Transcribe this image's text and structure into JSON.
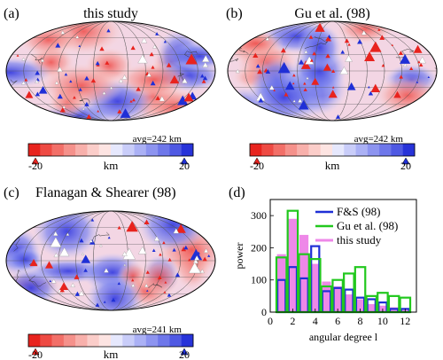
{
  "panels": [
    {
      "letter": "(a)",
      "title": "this study",
      "avg": "avg=242 km"
    },
    {
      "letter": "(b)",
      "title": "Gu et al. (98)",
      "avg": "avg=242 km"
    },
    {
      "letter": "(c)",
      "title": "Flanagan & Shearer (98)",
      "avg": "avg=241 km"
    }
  ],
  "colorbar": {
    "min_label": "-20",
    "unit": "km",
    "max_label": "20"
  },
  "colors": {
    "red": "#e8231e",
    "blue": "#1f2fd6",
    "green": "#22c81e",
    "magenta": "#ee88e8"
  },
  "chart_data": {
    "type": "bar",
    "panel_letter": "(d)",
    "xlabel": "angular degree l",
    "ylabel": "power",
    "xlim": [
      0,
      13
    ],
    "ylim": [
      0,
      350
    ],
    "x_ticks": [
      0,
      2,
      4,
      6,
      8,
      10,
      12
    ],
    "y_ticks": [
      0,
      100,
      200,
      300
    ],
    "x": [
      1,
      2,
      3,
      4,
      5,
      6,
      7,
      8,
      9,
      10,
      11,
      12
    ],
    "legend_position": "top-right",
    "series": [
      {
        "name": "F&S (98)",
        "style": "outline",
        "color": "#1f2fd6",
        "values": [
          100,
          140,
          105,
          205,
          65,
          75,
          70,
          45,
          40,
          30,
          10,
          10
        ]
      },
      {
        "name": "Gu et al. (98)",
        "style": "outline",
        "color": "#22c81e",
        "values": [
          170,
          315,
          180,
          165,
          80,
          100,
          120,
          140,
          50,
          60,
          50,
          45
        ]
      },
      {
        "name": "this study",
        "style": "filled",
        "color": "#ee88e8",
        "values": [
          180,
          290,
          240,
          150,
          95,
          80,
          55,
          40,
          25,
          20,
          15,
          10
        ]
      }
    ]
  }
}
